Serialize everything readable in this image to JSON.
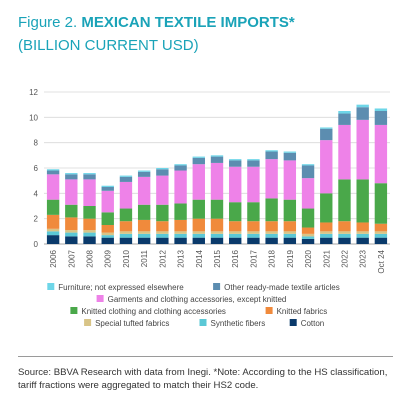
{
  "header": {
    "figure_label": "Figure 2.",
    "title": "MEXICAN TEXTILE IMPORTS*",
    "subtitle": "(BILLION CURRENT USD)"
  },
  "source": "Source: BBVA Research with data from Inegi. *Note: According to the HS classification, tariff fractions were aggregated to match their HS2 code.",
  "chart_data": {
    "type": "bar",
    "stacked": true,
    "categories": [
      "2006",
      "2007",
      "2008",
      "2009",
      "2010",
      "2011",
      "2012",
      "2013",
      "2014",
      "2015",
      "2016",
      "2017",
      "2018",
      "2019",
      "2020",
      "2021",
      "2022",
      "2023",
      "Oct 24"
    ],
    "yticks": [
      "0",
      "2",
      "4",
      "6",
      "8",
      "10",
      "12"
    ],
    "ylim": [
      0,
      12
    ],
    "grid": true,
    "legend_position": "bottom",
    "series": [
      {
        "name": "Cotton",
        "color": "#0a3a6b",
        "values": [
          0.7,
          0.6,
          0.6,
          0.5,
          0.5,
          0.5,
          0.5,
          0.5,
          0.5,
          0.5,
          0.5,
          0.5,
          0.5,
          0.5,
          0.4,
          0.5,
          0.5,
          0.5,
          0.5
        ]
      },
      {
        "name": "Synthetic fibers",
        "color": "#5bc8d6",
        "values": [
          0.3,
          0.3,
          0.3,
          0.2,
          0.3,
          0.3,
          0.3,
          0.3,
          0.3,
          0.3,
          0.3,
          0.3,
          0.3,
          0.3,
          0.2,
          0.3,
          0.3,
          0.3,
          0.3
        ]
      },
      {
        "name": "Special tufted fabrics",
        "color": "#d8c487",
        "values": [
          0.2,
          0.2,
          0.2,
          0.2,
          0.2,
          0.2,
          0.2,
          0.2,
          0.2,
          0.2,
          0.2,
          0.2,
          0.2,
          0.2,
          0.2,
          0.2,
          0.2,
          0.2,
          0.2
        ]
      },
      {
        "name": "Knitted fabrics",
        "color": "#f08a3c",
        "values": [
          1.1,
          1.0,
          0.9,
          0.6,
          0.8,
          0.9,
          0.8,
          0.9,
          1.0,
          1.0,
          0.8,
          0.8,
          0.8,
          0.8,
          0.5,
          0.7,
          0.8,
          0.7,
          0.6
        ]
      },
      {
        "name": "Knitted clothing and clothing accessories",
        "color": "#4aa84a",
        "values": [
          1.2,
          1.0,
          1.0,
          1.0,
          1.0,
          1.2,
          1.3,
          1.3,
          1.5,
          1.5,
          1.5,
          1.5,
          1.8,
          1.7,
          1.5,
          2.3,
          3.3,
          3.4,
          3.2
        ]
      },
      {
        "name": "Garments and clothing accessories, except knitted",
        "color": "#ee82e8",
        "values": [
          2.0,
          2.0,
          2.1,
          1.7,
          2.1,
          2.2,
          2.3,
          2.6,
          2.8,
          2.9,
          2.8,
          2.8,
          3.1,
          3.1,
          2.4,
          4.2,
          4.3,
          4.7,
          4.6
        ]
      },
      {
        "name": "Other ready-made textile articles",
        "color": "#5c8db0",
        "values": [
          0.3,
          0.4,
          0.4,
          0.3,
          0.4,
          0.4,
          0.5,
          0.4,
          0.5,
          0.5,
          0.5,
          0.5,
          0.6,
          0.6,
          1.0,
          0.9,
          0.9,
          1.0,
          1.1
        ]
      },
      {
        "name": "Furniture; not expressed elsewhere",
        "color": "#6ed6e8",
        "values": [
          0.1,
          0.1,
          0.1,
          0.1,
          0.1,
          0.1,
          0.1,
          0.1,
          0.1,
          0.1,
          0.1,
          0.1,
          0.1,
          0.1,
          0.1,
          0.1,
          0.2,
          0.2,
          0.2
        ]
      }
    ],
    "legend_order": [
      "Furniture; not expressed elsewhere",
      "Other ready-made textile articles",
      "Garments and clothing accessories, except knitted",
      "Knitted clothing and clothing accessories",
      "Knitted fabrics",
      "Special tufted fabrics",
      "Synthetic fibers",
      "Cotton"
    ]
  }
}
